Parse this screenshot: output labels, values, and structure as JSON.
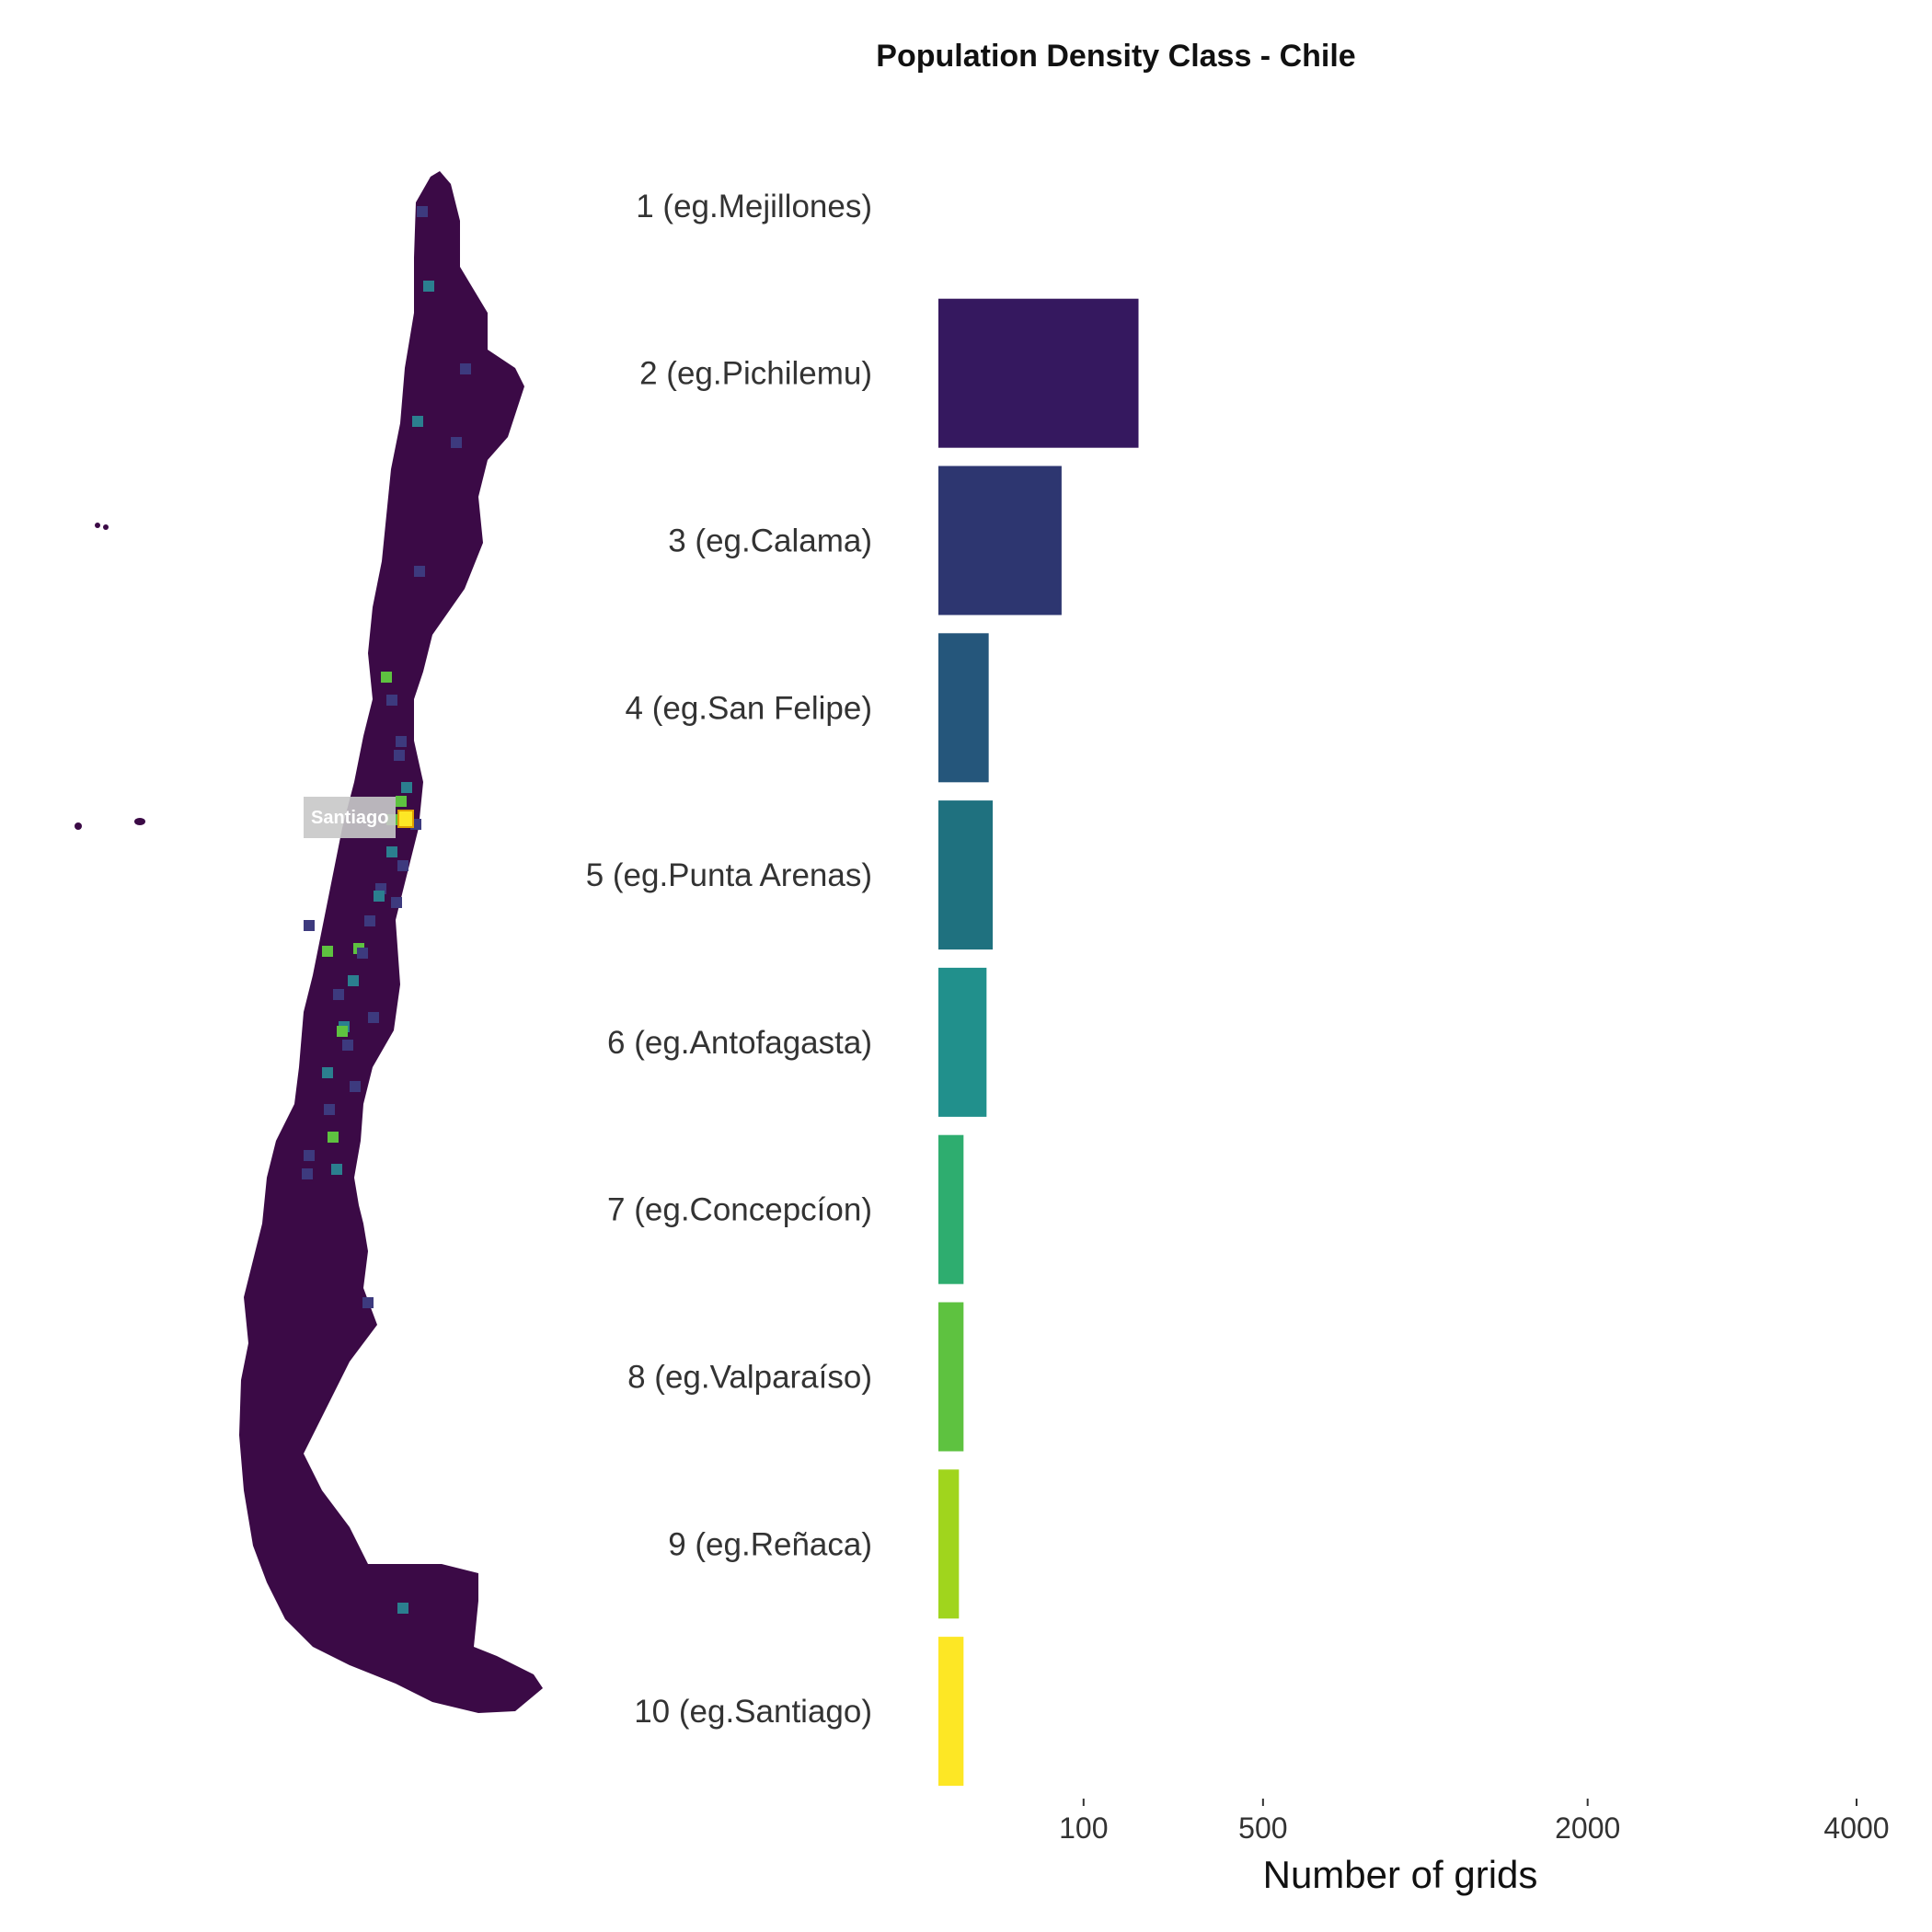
{
  "chart_data": {
    "type": "bar",
    "orientation": "horizontal",
    "title": "Population Density Class - Chile",
    "xlabel": "Number of grids",
    "ylabel": "",
    "x_scale": "sqrt",
    "x_ticks": [
      100,
      500,
      2000,
      4000
    ],
    "x_tick_labels": [
      "100",
      "500",
      "2000",
      "4000"
    ],
    "xlim": [
      0,
      4000
    ],
    "grid": false,
    "categories": [
      "1 (eg.Mejillones)",
      "2 (eg.Pichilemu)",
      "3 (eg.Calama)",
      "4 (eg.San Felipe)",
      "5 (eg.Punta Arenas)",
      "6 (eg.Antofagasta)",
      "7 (eg.Concepcíon)",
      "8 (eg.Valparaíso)",
      "9 (eg.Reñaca)",
      "10 (eg.Santiago)"
    ],
    "values": [
      0,
      190,
      72,
      12,
      14,
      11,
      3,
      3,
      2,
      3
    ],
    "colors": [
      "#440154",
      "#35185f",
      "#2d3670",
      "#25567b",
      "#1f717f",
      "#21908c",
      "#2ead6f",
      "#5ec240",
      "#a0d51d",
      "#fde725"
    ]
  },
  "map": {
    "label": "Santiago",
    "colors": {
      "land": "#3b0a46",
      "low": "#3d3a7e",
      "mid": "#2b7f8f",
      "high": "#5ec240",
      "top": "#fde725"
    }
  }
}
